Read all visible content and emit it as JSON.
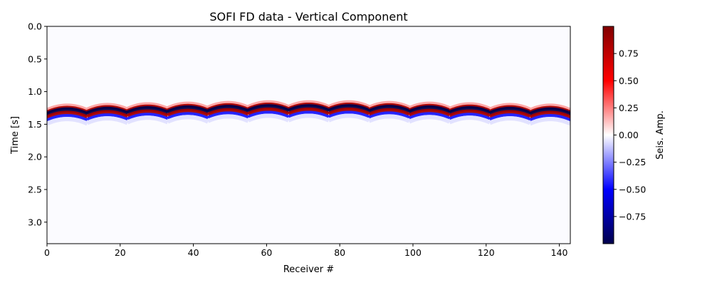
{
  "chart_data": {
    "type": "heatmap",
    "title": "SOFI FD data - Vertical Component",
    "xlabel": "Receiver #",
    "ylabel": "Time [s]",
    "xlim": [
      0,
      143
    ],
    "ylim": [
      3.33,
      0.0
    ],
    "x_ticks": [
      "0",
      "20",
      "40",
      "60",
      "80",
      "100",
      "120",
      "140"
    ],
    "y_ticks": [
      "0.0",
      "0.5",
      "1.0",
      "1.5",
      "2.0",
      "2.5",
      "3.0"
    ],
    "colorbar": {
      "label": "Seis. Amp.",
      "range": [
        -1.0,
        1.0
      ],
      "ticks": [
        "−0.75",
        "−0.50",
        "−0.25",
        "0.00",
        "0.25",
        "0.50",
        "0.75"
      ],
      "colormap": "seismic",
      "colors": {
        "negative_max": "#00004c",
        "negative": "#0000ff",
        "zero": "#ffffff",
        "positive": "#ff0000",
        "positive_max": "#800000"
      }
    },
    "event": {
      "description": "repeating hyperbolic arrivals",
      "period_receivers": 11,
      "apex_receivers": [
        5.5,
        16.5,
        27.5,
        38.5,
        49.5,
        60.5,
        71.5,
        82.5,
        93.5,
        104.5,
        115.5,
        126.5,
        137.5
      ],
      "apex_times_s": [
        1.28,
        1.27,
        1.26,
        1.25,
        1.24,
        1.23,
        1.23,
        1.23,
        1.24,
        1.25,
        1.26,
        1.27,
        1.28
      ],
      "edge_delay_s": 0.07,
      "wavelet_bands": [
        {
          "offset_s": -0.07,
          "amplitude": 0.18
        },
        {
          "offset_s": -0.035,
          "amplitude": 0.85
        },
        {
          "offset_s": 0.0,
          "amplitude": -1.0
        },
        {
          "offset_s": 0.04,
          "amplitude": 0.85
        },
        {
          "offset_s": 0.085,
          "amplitude": -0.45
        },
        {
          "offset_s": 0.14,
          "amplitude": -0.06
        }
      ]
    }
  }
}
